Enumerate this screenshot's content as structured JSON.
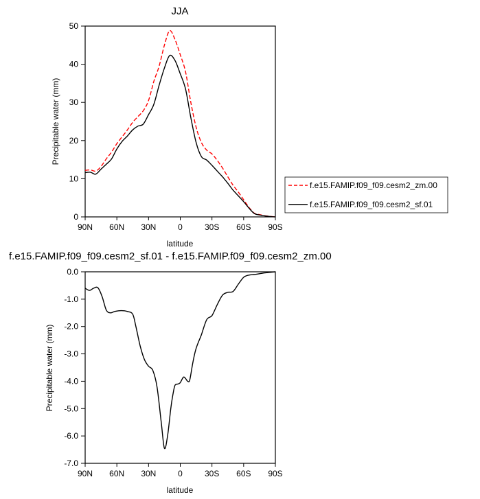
{
  "chart_data": [
    {
      "type": "line",
      "title": "JJA",
      "xlabel": "latitude",
      "ylabel": "Precipitable water (mm)",
      "x_ticks": [
        "90N",
        "60N",
        "30N",
        "0",
        "30S",
        "60S",
        "90S"
      ],
      "xlim": [
        90,
        -90
      ],
      "y_ticks": [
        "0",
        "10",
        "20",
        "30",
        "40",
        "50"
      ],
      "ylim": [
        0,
        50
      ],
      "legend_position": "right",
      "series": [
        {
          "name": "f.e15.FAMIP.f09_f09.cesm2_zm.00",
          "color": "#ff0000",
          "dash": "dashed",
          "x": [
            90,
            85,
            80,
            75,
            70,
            65,
            60,
            55,
            50,
            45,
            40,
            35,
            30,
            25,
            20,
            15,
            10,
            5,
            0,
            -5,
            -10,
            -15,
            -20,
            -25,
            -30,
            -35,
            -40,
            -45,
            -50,
            -55,
            -60,
            -65,
            -70,
            -75,
            -80,
            -85,
            -90
          ],
          "values": [
            12.2,
            12.3,
            12.0,
            13.2,
            15.2,
            17.0,
            19.2,
            21.0,
            22.8,
            24.8,
            26.3,
            27.8,
            30.5,
            35.5,
            39.5,
            45.0,
            48.8,
            46.5,
            42.5,
            38.0,
            30.0,
            23.5,
            19.5,
            17.5,
            16.5,
            14.8,
            12.8,
            10.5,
            8.3,
            6.5,
            4.5,
            2.5,
            1.0,
            0.6,
            0.3,
            0.15,
            0.0
          ]
        },
        {
          "name": "f.e15.FAMIP.f09_f09.cesm2_sf.01",
          "color": "#000000",
          "dash": "solid",
          "x": [
            90,
            85,
            80,
            75,
            70,
            65,
            60,
            55,
            50,
            45,
            40,
            35,
            30,
            25,
            20,
            15,
            10,
            5,
            0,
            -5,
            -10,
            -15,
            -20,
            -25,
            -30,
            -35,
            -40,
            -45,
            -50,
            -55,
            -60,
            -65,
            -70,
            -75,
            -80,
            -85,
            -90
          ],
          "values": [
            11.6,
            11.7,
            11.2,
            12.5,
            13.8,
            15.2,
            17.8,
            19.8,
            21.2,
            22.8,
            23.8,
            24.3,
            26.8,
            29.5,
            34.5,
            39.0,
            42.3,
            41.0,
            37.5,
            33.5,
            26.0,
            19.5,
            15.8,
            14.9,
            13.5,
            12.0,
            10.5,
            8.8,
            7.0,
            5.5,
            4.0,
            2.3,
            0.9,
            0.5,
            0.25,
            0.1,
            0.0
          ]
        }
      ]
    },
    {
      "type": "line",
      "title": "f.e15.FAMIP.f09_f09.cesm2_sf.01 - f.e15.FAMIP.f09_f09.cesm2_zm.00",
      "xlabel": "latitude",
      "ylabel": "Precipitable water (mm)",
      "x_ticks": [
        "90N",
        "60N",
        "30N",
        "0",
        "30S",
        "60S",
        "90S"
      ],
      "xlim": [
        90,
        -90
      ],
      "y_ticks": [
        "0.0",
        "-1.0",
        "-2.0",
        "-3.0",
        "-4.0",
        "-5.0",
        "-6.0",
        "-7.0"
      ],
      "ylim": [
        -7,
        0
      ],
      "series": [
        {
          "color": "#000000",
          "x": [
            90,
            86,
            82,
            78,
            74,
            70,
            66,
            62,
            56,
            50,
            45,
            42,
            38,
            34,
            30,
            26,
            22,
            18,
            15,
            12,
            9,
            7,
            5,
            2,
            0,
            -3,
            -5,
            -7,
            -9,
            -12,
            -15,
            -20,
            -25,
            -30,
            -35,
            -40,
            -45,
            -50,
            -55,
            -60,
            -65,
            -70,
            -75,
            -80,
            -85,
            -90
          ],
          "values": [
            -0.6,
            -0.68,
            -0.6,
            -0.58,
            -0.9,
            -1.4,
            -1.5,
            -1.45,
            -1.42,
            -1.45,
            -1.55,
            -2.0,
            -2.7,
            -3.2,
            -3.45,
            -3.6,
            -4.2,
            -5.5,
            -6.45,
            -6.0,
            -5.0,
            -4.5,
            -4.15,
            -4.1,
            -4.05,
            -3.85,
            -3.9,
            -4.0,
            -3.95,
            -3.3,
            -2.8,
            -2.3,
            -1.75,
            -1.6,
            -1.2,
            -0.85,
            -0.75,
            -0.72,
            -0.45,
            -0.2,
            -0.12,
            -0.1,
            -0.07,
            -0.04,
            -0.02,
            0.0
          ]
        }
      ]
    }
  ]
}
